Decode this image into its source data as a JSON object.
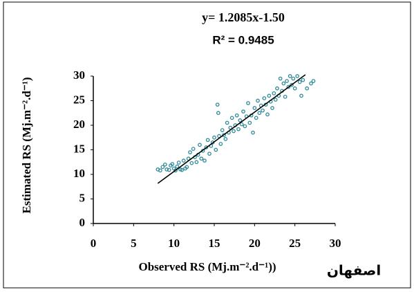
{
  "chart_data": {
    "type": "scatter",
    "equation": "y= 1.2085x-1.50",
    "r_squared": "R² = 0.9485",
    "x_label": "Observed RS (Mj.m⁻².d⁻¹))",
    "y_label": "Estimated RS (Mj.m⁻².d⁻¹)",
    "station": "اصفهان",
    "xlim": [
      0,
      30
    ],
    "xticks": [
      0,
      5,
      10,
      15,
      20,
      25,
      30
    ],
    "ylim": [
      0,
      30
    ],
    "yticks": [
      0,
      5,
      10,
      15,
      20,
      25,
      30
    ],
    "trendline": {
      "slope": 1.2085,
      "intercept": -1.5,
      "x_range": [
        8,
        26.3
      ]
    },
    "series": [
      {
        "color": "#2e8b9a",
        "x": [
          8.0,
          8.3,
          8.6,
          8.9,
          9.1,
          9.4,
          9.6,
          9.8,
          10.0,
          10.2,
          10.4,
          10.6,
          10.8,
          11.0,
          11.2,
          11.4,
          11.6,
          11.8,
          12.0,
          12.2,
          12.4,
          12.6,
          12.8,
          13.0,
          13.2,
          13.4,
          13.6,
          13.8,
          14.0,
          14.2,
          14.4,
          14.6,
          14.8,
          15.0,
          15.2,
          15.4,
          15.5,
          15.6,
          15.8,
          16.0,
          16.2,
          16.4,
          16.6,
          16.8,
          17.0,
          17.2,
          17.4,
          17.6,
          17.8,
          18.0,
          18.2,
          18.4,
          18.6,
          18.8,
          19.0,
          19.2,
          19.4,
          19.6,
          19.8,
          20.0,
          20.2,
          20.4,
          20.6,
          20.8,
          21.0,
          21.2,
          21.4,
          21.6,
          21.8,
          22.0,
          22.2,
          22.4,
          22.6,
          22.8,
          23.0,
          23.2,
          23.4,
          23.6,
          23.8,
          24.0,
          24.2,
          24.4,
          24.6,
          24.8,
          25.0,
          25.3,
          25.6,
          26.0,
          26.5,
          27.0,
          27.3,
          25.8
        ],
        "values": [
          11,
          10.8,
          11.5,
          12,
          11,
          10.9,
          11.8,
          12.1,
          11.2,
          10.8,
          11.6,
          12.4,
          11,
          10.9,
          12.8,
          11.2,
          11.5,
          13.2,
          14.5,
          12.3,
          15.2,
          13.5,
          12.5,
          14.0,
          16.0,
          13.2,
          14.8,
          12.8,
          15.5,
          17.0,
          14.2,
          15.8,
          16.5,
          17.5,
          15.0,
          24.2,
          22.5,
          17.8,
          16.2,
          19.0,
          18.0,
          17.2,
          20.5,
          18.5,
          19.5,
          21.5,
          18.8,
          20.0,
          22.0,
          19.2,
          21.0,
          20.2,
          22.8,
          19.8,
          21.8,
          24.5,
          20.5,
          22.0,
          18.5,
          23.5,
          21.5,
          25.0,
          22.5,
          24.0,
          23.0,
          25.5,
          24.2,
          22.2,
          26.0,
          24.8,
          23.5,
          26.5,
          25.2,
          27.5,
          26.0,
          29.5,
          27.0,
          28.5,
          25.8,
          29.0,
          27.8,
          30.0,
          28.2,
          29.5,
          27.5,
          30.0,
          28.8,
          29.2,
          27.5,
          28.5,
          29.0,
          26.0
        ]
      }
    ]
  }
}
